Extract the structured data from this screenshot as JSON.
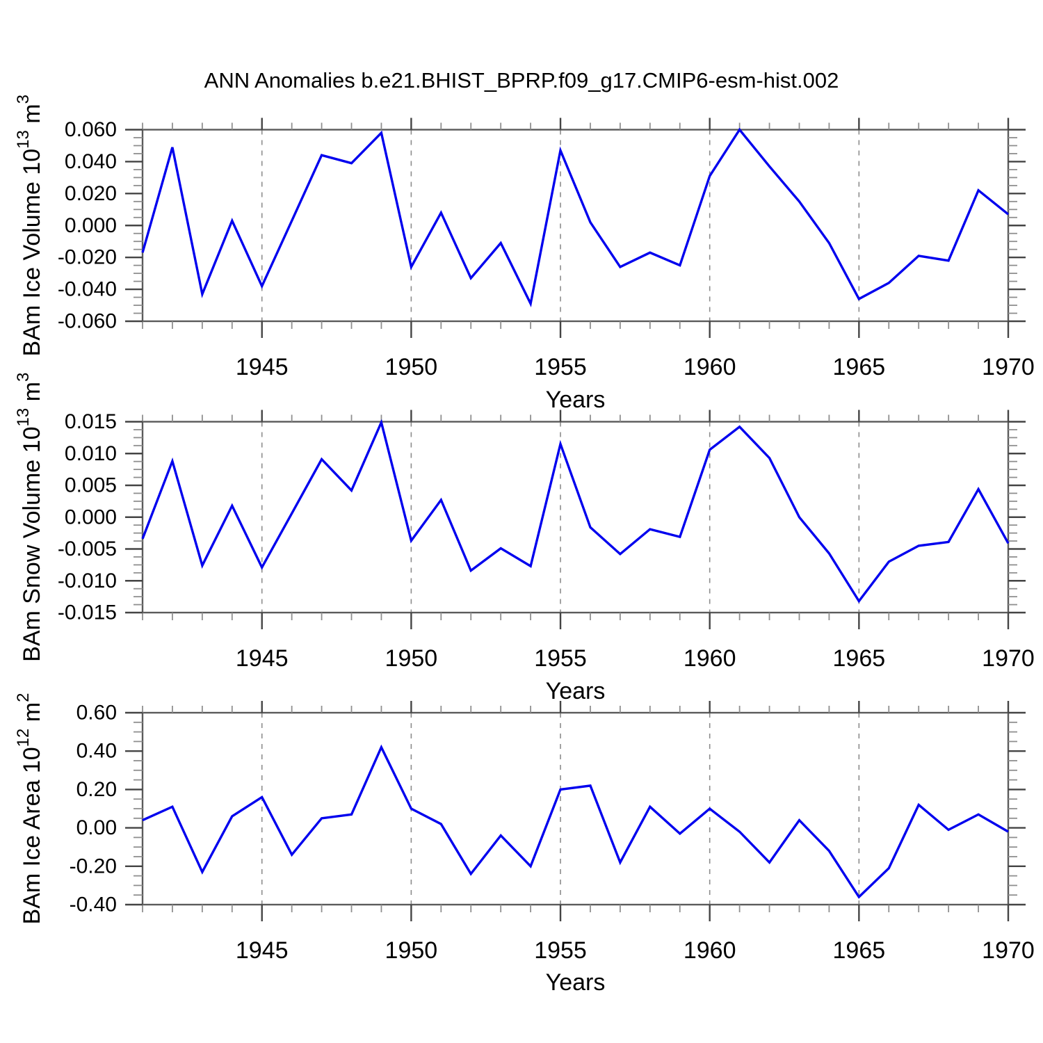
{
  "title": "ANN Anomalies b.e21.BHIST_BPRP.f09_g17.CMIP6-esm-hist.002",
  "colors": {
    "line": "#0000ee",
    "frame": "#5a5a5a",
    "tick_major": "#444444",
    "tick_minor": "#8f8f8f",
    "grid": "#8c8c8c",
    "text": "#000000",
    "background": "#ffffff"
  },
  "chart_data": [
    {
      "type": "line",
      "title": "",
      "xlabel": "Years",
      "ylabel": {
        "prefix": "BAm Ice Volume 10",
        "exponent": "13",
        "unit": " m",
        "unit_exponent": "3"
      },
      "xlim": [
        1941,
        1970
      ],
      "ylim": [
        -0.06,
        0.06
      ],
      "x": [
        1941,
        1942,
        1943,
        1944,
        1945,
        1946,
        1947,
        1948,
        1949,
        1950,
        1951,
        1952,
        1953,
        1954,
        1955,
        1956,
        1957,
        1958,
        1959,
        1960,
        1961,
        1962,
        1963,
        1964,
        1965,
        1966,
        1967,
        1968,
        1969,
        1970
      ],
      "values": [
        -0.017,
        0.049,
        -0.043,
        0.003,
        -0.038,
        0.003,
        0.044,
        0.039,
        0.058,
        -0.026,
        0.008,
        -0.033,
        -0.011,
        -0.049,
        0.047,
        0.002,
        -0.026,
        -0.017,
        -0.025,
        0.031,
        0.06,
        0.037,
        0.015,
        -0.011,
        -0.046,
        -0.036,
        -0.019,
        -0.022,
        0.022,
        0.007
      ],
      "ytick_labels": [
        "0.060",
        "0.040",
        "0.020",
        "0.000",
        "-0.020",
        "-0.040",
        "-0.060"
      ],
      "ytick_values": [
        0.06,
        0.04,
        0.02,
        0.0,
        -0.02,
        -0.04,
        -0.06
      ],
      "y_minor_step": 0.005,
      "xtick_labels": [
        "1945",
        "1950",
        "1955",
        "1960",
        "1965",
        "1970"
      ],
      "xtick_values": [
        1945,
        1950,
        1955,
        1960,
        1965,
        1970
      ],
      "x_minor_step": 1,
      "grid_years": [
        1945,
        1950,
        1955,
        1960,
        1965
      ],
      "grid": "vertical-dashed",
      "legend": "none"
    },
    {
      "type": "line",
      "title": "",
      "xlabel": "Years",
      "ylabel": {
        "prefix": "BAm Snow Volume 10",
        "exponent": "13",
        "unit": " m",
        "unit_exponent": "3"
      },
      "xlim": [
        1941,
        1970
      ],
      "ylim": [
        -0.015,
        0.015
      ],
      "x": [
        1941,
        1942,
        1943,
        1944,
        1945,
        1946,
        1947,
        1948,
        1949,
        1950,
        1951,
        1952,
        1953,
        1954,
        1955,
        1956,
        1957,
        1958,
        1959,
        1960,
        1961,
        1962,
        1963,
        1964,
        1965,
        1966,
        1967,
        1968,
        1969,
        1970
      ],
      "values": [
        -0.0034,
        0.0088,
        -0.0076,
        0.0018,
        -0.0079,
        0.0006,
        0.0091,
        0.0042,
        0.0149,
        -0.0037,
        0.0027,
        -0.0084,
        -0.0049,
        -0.0077,
        0.0115,
        -0.0016,
        -0.0058,
        -0.0019,
        -0.0031,
        0.0106,
        0.0142,
        0.0093,
        0.0,
        -0.0057,
        -0.0132,
        -0.007,
        -0.0045,
        -0.0039,
        0.0044,
        -0.0041
      ],
      "ytick_labels": [
        "0.015",
        "0.010",
        "0.005",
        "0.000",
        "-0.005",
        "-0.010",
        "-0.015"
      ],
      "ytick_values": [
        0.015,
        0.01,
        0.005,
        0.0,
        -0.005,
        -0.01,
        -0.015
      ],
      "y_minor_step": 0.00125,
      "xtick_labels": [
        "1945",
        "1950",
        "1955",
        "1960",
        "1965",
        "1970"
      ],
      "xtick_values": [
        1945,
        1950,
        1955,
        1960,
        1965,
        1970
      ],
      "x_minor_step": 1,
      "grid_years": [
        1945,
        1950,
        1955,
        1960,
        1965
      ],
      "grid": "vertical-dashed",
      "legend": "none"
    },
    {
      "type": "line",
      "title": "",
      "xlabel": "Years",
      "ylabel": {
        "prefix": "BAm Ice Area 10",
        "exponent": "12",
        "unit": " m",
        "unit_exponent": "2"
      },
      "xlim": [
        1941,
        1970
      ],
      "ylim": [
        -0.4,
        0.6
      ],
      "x": [
        1941,
        1942,
        1943,
        1944,
        1945,
        1946,
        1947,
        1948,
        1949,
        1950,
        1951,
        1952,
        1953,
        1954,
        1955,
        1956,
        1957,
        1958,
        1959,
        1960,
        1961,
        1962,
        1963,
        1964,
        1965,
        1966,
        1967,
        1968,
        1969,
        1970
      ],
      "values": [
        0.04,
        0.11,
        -0.23,
        0.06,
        0.16,
        -0.14,
        0.05,
        0.07,
        0.42,
        0.1,
        0.02,
        -0.24,
        -0.04,
        -0.2,
        0.2,
        0.22,
        -0.18,
        0.11,
        -0.03,
        0.1,
        -0.02,
        -0.18,
        0.04,
        -0.12,
        -0.36,
        -0.21,
        0.12,
        -0.01,
        0.07,
        -0.02
      ],
      "ytick_labels": [
        "0.60",
        "0.40",
        "0.20",
        "0.00",
        "-0.20",
        "-0.40"
      ],
      "ytick_values": [
        0.6,
        0.4,
        0.2,
        0.0,
        -0.2,
        -0.4
      ],
      "y_minor_step": 0.05,
      "xtick_labels": [
        "1945",
        "1950",
        "1955",
        "1960",
        "1965",
        "1970"
      ],
      "xtick_values": [
        1945,
        1950,
        1955,
        1960,
        1965,
        1970
      ],
      "x_minor_step": 1,
      "grid_years": [
        1945,
        1950,
        1955,
        1960,
        1965
      ],
      "grid": "vertical-dashed",
      "legend": "none"
    }
  ]
}
